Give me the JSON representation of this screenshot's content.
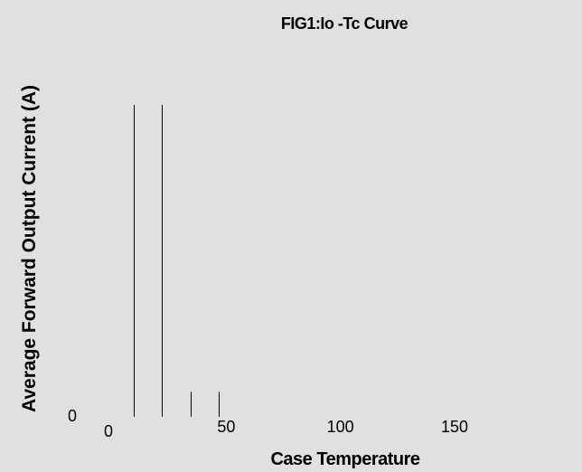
{
  "chart_data": {
    "type": "bar",
    "title": "FIG1:Io -Tc Curve",
    "xlabel": "Case Temperature",
    "ylabel": "Average Forward Output Current (A)",
    "x_ticks": [
      "0",
      "50",
      "100",
      "150"
    ],
    "y_ticks": [
      "0"
    ],
    "xlim": [
      0,
      150
    ],
    "grid": false,
    "series": [
      {
        "x": [
          12,
          24,
          37,
          49
        ],
        "values": [
          1.0,
          1.0,
          0.08,
          0.08
        ]
      }
    ]
  },
  "colors": {
    "background": "#e0e0e0",
    "lines": "#000000"
  }
}
